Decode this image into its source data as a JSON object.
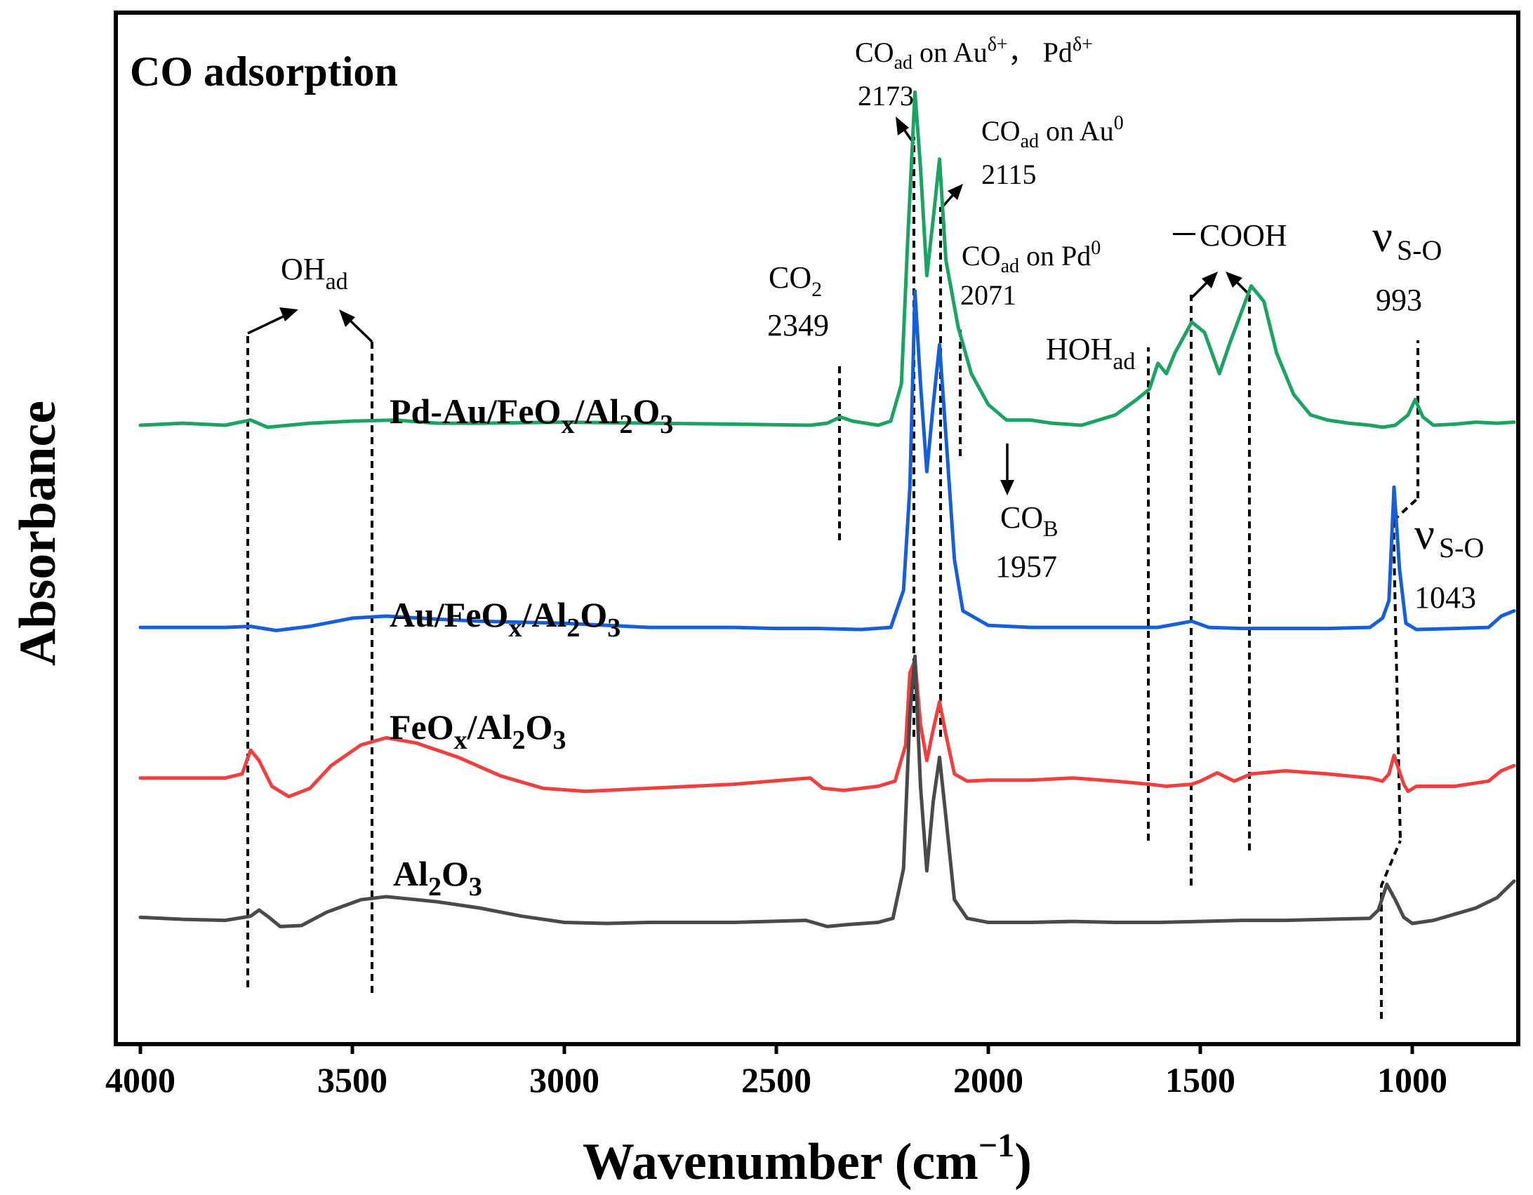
{
  "chart_data": {
    "type": "line",
    "title": "CO adsorption",
    "xlabel": "Wavenumber (cm",
    "xlabel_sup": "−1",
    "xlabel_close": ")",
    "ylabel": "Absorbance",
    "xlim": [
      4000,
      750
    ],
    "x_ticks": [
      4000,
      3500,
      3000,
      2500,
      2000,
      1500,
      1000
    ],
    "x_tick_labels": [
      "4000",
      "3500",
      "3000",
      "2500",
      "2000",
      "1500",
      "1000"
    ],
    "y_ticks_shown": false,
    "series": [
      {
        "name": "Pd-Au/FeOx/Al2O3",
        "label_main": "Pd-Au/FeO",
        "label_sub1": "x",
        "label_mid": "/Al",
        "label_sub2": "2",
        "label_o": "O",
        "label_sub3": "3",
        "color": "#1aa362",
        "baseline": 0.6,
        "points": [
          [
            4000,
            0.6
          ],
          [
            3900,
            0.602
          ],
          [
            3800,
            0.6
          ],
          [
            3740,
            0.605
          ],
          [
            3700,
            0.598
          ],
          [
            3600,
            0.602
          ],
          [
            3500,
            0.604
          ],
          [
            3400,
            0.605
          ],
          [
            3300,
            0.602
          ],
          [
            3200,
            0.602
          ],
          [
            3000,
            0.603
          ],
          [
            2800,
            0.602
          ],
          [
            2600,
            0.601
          ],
          [
            2420,
            0.6
          ],
          [
            2380,
            0.602
          ],
          [
            2349,
            0.608
          ],
          [
            2320,
            0.604
          ],
          [
            2260,
            0.6
          ],
          [
            2230,
            0.604
          ],
          [
            2205,
            0.64
          ],
          [
            2190,
            0.78
          ],
          [
            2173,
            0.923
          ],
          [
            2160,
            0.85
          ],
          [
            2145,
            0.745
          ],
          [
            2130,
            0.8
          ],
          [
            2115,
            0.858
          ],
          [
            2100,
            0.76
          ],
          [
            2071,
            0.695
          ],
          [
            2040,
            0.65
          ],
          [
            2000,
            0.62
          ],
          [
            1957,
            0.605
          ],
          [
            1900,
            0.605
          ],
          [
            1850,
            0.602
          ],
          [
            1780,
            0.6
          ],
          [
            1700,
            0.61
          ],
          [
            1650,
            0.625
          ],
          [
            1620,
            0.635
          ],
          [
            1600,
            0.66
          ],
          [
            1580,
            0.65
          ],
          [
            1560,
            0.67
          ],
          [
            1520,
            0.7
          ],
          [
            1490,
            0.69
          ],
          [
            1455,
            0.65
          ],
          [
            1430,
            0.68
          ],
          [
            1380,
            0.735
          ],
          [
            1350,
            0.72
          ],
          [
            1320,
            0.67
          ],
          [
            1280,
            0.63
          ],
          [
            1240,
            0.61
          ],
          [
            1200,
            0.605
          ],
          [
            1150,
            0.602
          ],
          [
            1100,
            0.6
          ],
          [
            1070,
            0.598
          ],
          [
            1040,
            0.6
          ],
          [
            1010,
            0.61
          ],
          [
            993,
            0.625
          ],
          [
            975,
            0.608
          ],
          [
            950,
            0.6
          ],
          [
            900,
            0.601
          ],
          [
            850,
            0.603
          ],
          [
            800,
            0.602
          ],
          [
            760,
            0.603
          ]
        ]
      },
      {
        "name": "Au/FeOx/Al2O3",
        "label_main": "Au/FeO",
        "label_sub1": "x",
        "label_mid": "/Al",
        "label_sub2": "2",
        "label_o": "O",
        "label_sub3": "3",
        "color": "#1560d8",
        "baseline": 0.402,
        "points": [
          [
            4000,
            0.404
          ],
          [
            3900,
            0.404
          ],
          [
            3800,
            0.404
          ],
          [
            3740,
            0.405
          ],
          [
            3680,
            0.401
          ],
          [
            3600,
            0.405
          ],
          [
            3500,
            0.413
          ],
          [
            3420,
            0.415
          ],
          [
            3300,
            0.412
          ],
          [
            3200,
            0.41
          ],
          [
            3000,
            0.408
          ],
          [
            2800,
            0.404
          ],
          [
            2600,
            0.404
          ],
          [
            2500,
            0.403
          ],
          [
            2400,
            0.403
          ],
          [
            2300,
            0.402
          ],
          [
            2230,
            0.404
          ],
          [
            2200,
            0.44
          ],
          [
            2185,
            0.54
          ],
          [
            2173,
            0.73
          ],
          [
            2160,
            0.64
          ],
          [
            2145,
            0.555
          ],
          [
            2130,
            0.62
          ],
          [
            2115,
            0.678
          ],
          [
            2100,
            0.59
          ],
          [
            2080,
            0.47
          ],
          [
            2060,
            0.42
          ],
          [
            2000,
            0.406
          ],
          [
            1900,
            0.404
          ],
          [
            1800,
            0.404
          ],
          [
            1700,
            0.404
          ],
          [
            1600,
            0.404
          ],
          [
            1520,
            0.41
          ],
          [
            1480,
            0.404
          ],
          [
            1400,
            0.403
          ],
          [
            1300,
            0.403
          ],
          [
            1200,
            0.403
          ],
          [
            1100,
            0.404
          ],
          [
            1070,
            0.413
          ],
          [
            1055,
            0.43
          ],
          [
            1043,
            0.54
          ],
          [
            1030,
            0.46
          ],
          [
            1015,
            0.408
          ],
          [
            990,
            0.402
          ],
          [
            900,
            0.403
          ],
          [
            820,
            0.404
          ],
          [
            790,
            0.415
          ],
          [
            760,
            0.42
          ]
        ]
      },
      {
        "name": "FeOx/Al2O3",
        "label_main": "FeO",
        "label_sub1": "x",
        "label_mid": "/Al",
        "label_sub2": "2",
        "label_o": "O",
        "label_sub3": "3",
        "color": "#ef3f3f",
        "baseline": 0.257,
        "points": [
          [
            4000,
            0.258
          ],
          [
            3900,
            0.258
          ],
          [
            3800,
            0.258
          ],
          [
            3760,
            0.262
          ],
          [
            3740,
            0.285
          ],
          [
            3720,
            0.275
          ],
          [
            3690,
            0.25
          ],
          [
            3650,
            0.24
          ],
          [
            3600,
            0.248
          ],
          [
            3550,
            0.27
          ],
          [
            3480,
            0.29
          ],
          [
            3420,
            0.297
          ],
          [
            3350,
            0.292
          ],
          [
            3250,
            0.278
          ],
          [
            3150,
            0.26
          ],
          [
            3050,
            0.248
          ],
          [
            2950,
            0.245
          ],
          [
            2800,
            0.248
          ],
          [
            2600,
            0.252
          ],
          [
            2420,
            0.258
          ],
          [
            2390,
            0.248
          ],
          [
            2340,
            0.246
          ],
          [
            2260,
            0.25
          ],
          [
            2220,
            0.255
          ],
          [
            2195,
            0.29
          ],
          [
            2185,
            0.36
          ],
          [
            2173,
            0.372
          ],
          [
            2160,
            0.31
          ],
          [
            2145,
            0.275
          ],
          [
            2130,
            0.305
          ],
          [
            2115,
            0.332
          ],
          [
            2100,
            0.3
          ],
          [
            2080,
            0.262
          ],
          [
            2050,
            0.255
          ],
          [
            2000,
            0.256
          ],
          [
            1900,
            0.256
          ],
          [
            1800,
            0.258
          ],
          [
            1700,
            0.255
          ],
          [
            1620,
            0.252
          ],
          [
            1580,
            0.25
          ],
          [
            1520,
            0.252
          ],
          [
            1500,
            0.255
          ],
          [
            1460,
            0.263
          ],
          [
            1420,
            0.255
          ],
          [
            1380,
            0.262
          ],
          [
            1300,
            0.265
          ],
          [
            1200,
            0.262
          ],
          [
            1100,
            0.258
          ],
          [
            1070,
            0.255
          ],
          [
            1055,
            0.262
          ],
          [
            1043,
            0.28
          ],
          [
            1035,
            0.27
          ],
          [
            1020,
            0.252
          ],
          [
            1010,
            0.245
          ],
          [
            990,
            0.25
          ],
          [
            900,
            0.25
          ],
          [
            820,
            0.255
          ],
          [
            790,
            0.265
          ],
          [
            760,
            0.27
          ]
        ]
      },
      {
        "name": "Al2O3",
        "label_main": "Al",
        "label_sub1": "2",
        "label_mid": "O",
        "label_sub2": "3",
        "label_o": "",
        "label_sub3": "",
        "color": "#4a4a4a",
        "baseline": 0.119,
        "points": [
          [
            4000,
            0.123
          ],
          [
            3900,
            0.121
          ],
          [
            3800,
            0.12
          ],
          [
            3740,
            0.124
          ],
          [
            3720,
            0.13
          ],
          [
            3700,
            0.124
          ],
          [
            3670,
            0.114
          ],
          [
            3620,
            0.115
          ],
          [
            3560,
            0.128
          ],
          [
            3480,
            0.14
          ],
          [
            3420,
            0.143
          ],
          [
            3300,
            0.138
          ],
          [
            3200,
            0.132
          ],
          [
            3100,
            0.124
          ],
          [
            3000,
            0.118
          ],
          [
            2900,
            0.117
          ],
          [
            2800,
            0.118
          ],
          [
            2600,
            0.118
          ],
          [
            2430,
            0.12
          ],
          [
            2380,
            0.114
          ],
          [
            2330,
            0.116
          ],
          [
            2260,
            0.118
          ],
          [
            2225,
            0.122
          ],
          [
            2200,
            0.17
          ],
          [
            2185,
            0.32
          ],
          [
            2173,
            0.376
          ],
          [
            2160,
            0.25
          ],
          [
            2145,
            0.168
          ],
          [
            2130,
            0.235
          ],
          [
            2115,
            0.278
          ],
          [
            2100,
            0.22
          ],
          [
            2080,
            0.14
          ],
          [
            2050,
            0.122
          ],
          [
            2000,
            0.118
          ],
          [
            1900,
            0.118
          ],
          [
            1800,
            0.119
          ],
          [
            1700,
            0.118
          ],
          [
            1600,
            0.118
          ],
          [
            1500,
            0.119
          ],
          [
            1400,
            0.12
          ],
          [
            1300,
            0.12
          ],
          [
            1200,
            0.121
          ],
          [
            1100,
            0.122
          ],
          [
            1080,
            0.13
          ],
          [
            1060,
            0.155
          ],
          [
            1040,
            0.14
          ],
          [
            1020,
            0.123
          ],
          [
            1000,
            0.117
          ],
          [
            950,
            0.12
          ],
          [
            900,
            0.126
          ],
          [
            850,
            0.132
          ],
          [
            800,
            0.142
          ],
          [
            760,
            0.158
          ]
        ]
      }
    ],
    "annotations": {
      "oh": {
        "text": "OH",
        "sub": "ad"
      },
      "co2": {
        "text": "CO",
        "sub": "2",
        "value": "2349"
      },
      "co_au_pd": {
        "text": "CO",
        "sub": "ad",
        "rest": " on Au",
        "sup1": "δ+",
        "mid": "， Pd",
        "sup2": "δ+",
        "value": "2173"
      },
      "co_au0": {
        "text": "CO",
        "sub": "ad",
        "rest": " on Au",
        "sup": "0",
        "value": "2115"
      },
      "co_pd0": {
        "text": "CO",
        "sub": "ad",
        "rest": " on Pd",
        "sup": "0",
        "value": "2071"
      },
      "cob": {
        "text": "CO",
        "sub": "B",
        "value": "1957"
      },
      "hoh": {
        "text": "HOH",
        "sub": "ad"
      },
      "cooh": {
        "text": "－COOH"
      },
      "vso_993": {
        "nu": "ν",
        "sub": "S-O",
        "value": "993"
      },
      "vso_1043": {
        "nu": "ν",
        "sub": "S-O",
        "value": "1043"
      }
    }
  }
}
